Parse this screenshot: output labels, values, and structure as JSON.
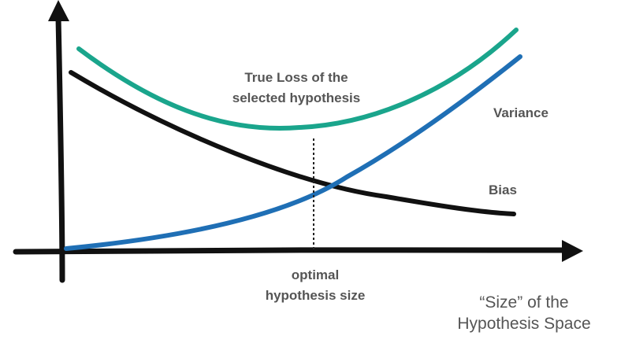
{
  "labels": {
    "true_loss": [
      "True Loss of the",
      "selected hypothesis"
    ],
    "variance": "Variance",
    "bias": "Bias",
    "optimal": [
      "optimal",
      "hypothesis size"
    ],
    "x_axis": [
      "“Size” of the",
      "Hypothesis Space"
    ]
  },
  "colors": {
    "true_loss_curve": "#1aa58c",
    "variance_curve": "#1f6fb5",
    "bias_curve": "#111111",
    "axes": "#111111",
    "label_text": "#555555",
    "optimal_marker": "#222222"
  }
}
